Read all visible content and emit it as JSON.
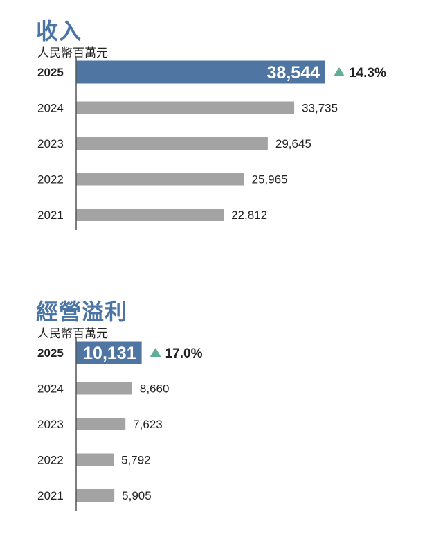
{
  "chart_data": [
    {
      "type": "bar",
      "orientation": "horizontal",
      "title": "收入",
      "unit": "人民幣百萬元",
      "categories": [
        "2025",
        "2024",
        "2023",
        "2022",
        "2021"
      ],
      "values": [
        38544,
        33735,
        29645,
        25965,
        22812
      ],
      "value_labels": [
        "38,544",
        "33,735",
        "29,645",
        "25,965",
        "22,812"
      ],
      "highlight": "2025",
      "change": "14.3%"
    },
    {
      "type": "bar",
      "orientation": "horizontal",
      "title": "經營溢利",
      "unit": "人民幣百萬元",
      "categories": [
        "2025",
        "2024",
        "2023",
        "2022",
        "2021"
      ],
      "values": [
        10131,
        8660,
        7623,
        5792,
        5905
      ],
      "value_labels": [
        "10,131",
        "8,660",
        "7,623",
        "5,792",
        "5,905"
      ],
      "highlight": "2025",
      "change": "17.0%"
    }
  ],
  "colors": {
    "highlight_bar": "#4f76a3",
    "bar": "#a3a3a3",
    "title": "#4a74a4",
    "change_arrow": "#5fae98",
    "axis": "#555555"
  }
}
